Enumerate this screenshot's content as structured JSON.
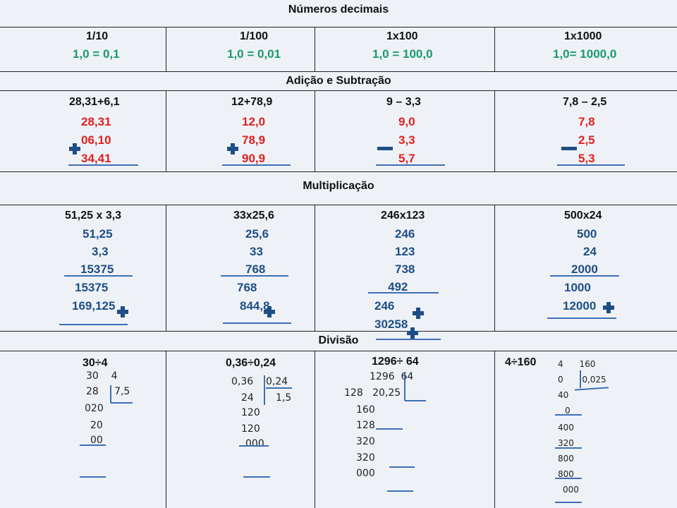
{
  "headers": {
    "numeros": "Números decimais",
    "adicao": "Adição e Subtração",
    "multiplicacao": "Multiplicação",
    "divisao": "Divisão"
  },
  "decimais": [
    {
      "op": "1/10",
      "ex": "1,0 = 0,1"
    },
    {
      "op": "1/100",
      "ex": "1,0 = 0,01"
    },
    {
      "op": "1x100",
      "ex": "1,0 = 100,0"
    },
    {
      "op": "1x1000",
      "ex": "1,0= 1000,0"
    }
  ],
  "adicao": [
    {
      "title": "28,31+6,1",
      "lines": [
        "28,31",
        "06,10",
        "34,41"
      ]
    },
    {
      "title": "12+78,9",
      "lines": [
        "12,0",
        "78,9",
        "90,9"
      ]
    },
    {
      "title": "9 – 3,3",
      "lines": [
        "9,0",
        "3,3",
        "5,7"
      ]
    },
    {
      "title": "7,8 – 2,5",
      "lines": [
        "7,8",
        "2,5",
        "5,3"
      ]
    }
  ],
  "multiplicacao": [
    {
      "title": "51,25 x 3,3",
      "lines": [
        "51,25",
        "3,3",
        "15375",
        "15375",
        "169,125"
      ]
    },
    {
      "title": "33x25,6",
      "lines": [
        "25,6",
        "33",
        "768",
        "768",
        "844,8"
      ]
    },
    {
      "title": "246x123",
      "lines": [
        "246",
        "123",
        "738",
        "492",
        "246",
        "30258"
      ]
    },
    {
      "title": "500x24",
      "lines": [
        "500",
        "24",
        "2000",
        "1000",
        "12000"
      ]
    }
  ],
  "divisao": [
    {
      "title": "30÷4",
      "lines": [
        "30    4",
        "28     7,5",
        "020",
        "20",
        "00"
      ]
    },
    {
      "title": "0,36÷0,24",
      "lines": [
        "0,36    0,24",
        "24       1,5",
        "120",
        "120",
        "000"
      ]
    },
    {
      "title": "1296÷ 64",
      "lines": [
        "1296  64",
        "128   20,25",
        "160",
        "128",
        "320",
        "320",
        "000"
      ]
    },
    {
      "title": "4÷160",
      "lines": [
        "4      160",
        "0       0,025",
        "40",
        "0",
        "400",
        "320",
        "800",
        "800",
        "000"
      ]
    }
  ],
  "icons": {
    "plus": "plus-sign-icon",
    "minus": "minus-sign-icon"
  },
  "colors": {
    "green": "#1a9a6a",
    "red": "#e02020",
    "blue": "#1f4e86",
    "background": "#eef2f6"
  }
}
